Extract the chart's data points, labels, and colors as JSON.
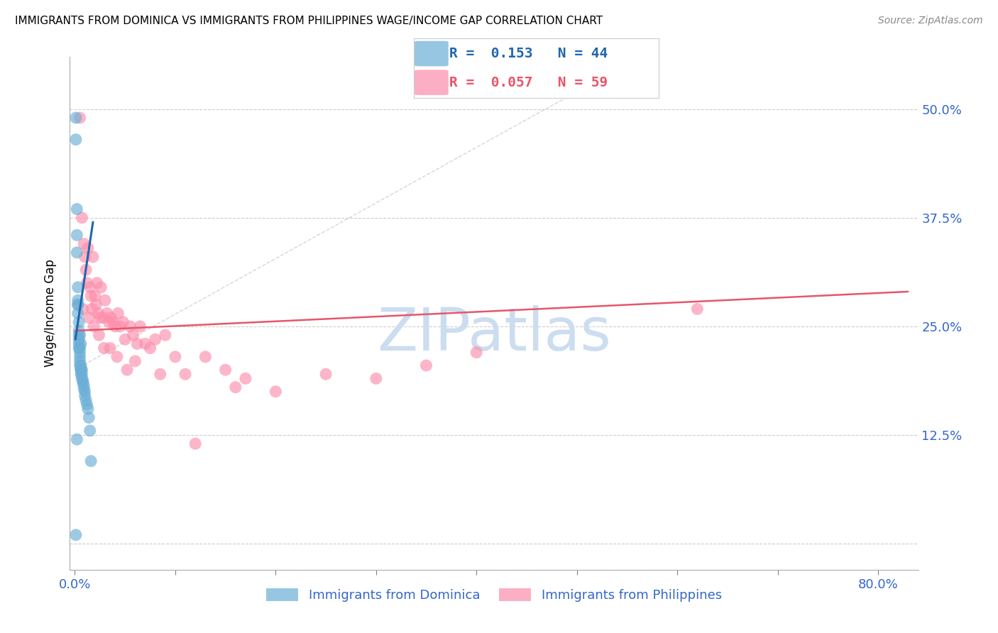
{
  "title": "IMMIGRANTS FROM DOMINICA VS IMMIGRANTS FROM PHILIPPINES WAGE/INCOME GAP CORRELATION CHART",
  "source": "Source: ZipAtlas.com",
  "xmin": -0.005,
  "xmax": 0.84,
  "ymin": -0.03,
  "ymax": 0.56,
  "R1": 0.153,
  "N1": 44,
  "R2": 0.057,
  "N2": 59,
  "color1": "#6baed6",
  "color2": "#fc8eac",
  "line_color1": "#2166ac",
  "line_color2": "#e8556a",
  "watermark": "ZIPatlas",
  "watermark_color": "#ccddf0",
  "legend_label1": "Immigrants from Dominica",
  "legend_label2": "Immigrants from Philippines",
  "dominica_x": [
    0.001,
    0.001,
    0.002,
    0.002,
    0.002,
    0.003,
    0.003,
    0.003,
    0.003,
    0.004,
    0.004,
    0.004,
    0.004,
    0.004,
    0.005,
    0.005,
    0.005,
    0.005,
    0.005,
    0.006,
    0.006,
    0.006,
    0.006,
    0.007,
    0.007,
    0.007,
    0.008,
    0.008,
    0.009,
    0.009,
    0.01,
    0.01,
    0.011,
    0.012,
    0.013,
    0.014,
    0.015,
    0.016,
    0.003,
    0.004,
    0.001,
    0.002,
    0.005,
    0.006
  ],
  "dominica_y": [
    0.49,
    0.465,
    0.385,
    0.355,
    0.335,
    0.295,
    0.275,
    0.265,
    0.275,
    0.255,
    0.245,
    0.235,
    0.23,
    0.225,
    0.225,
    0.22,
    0.215,
    0.21,
    0.205,
    0.205,
    0.2,
    0.2,
    0.195,
    0.2,
    0.195,
    0.19,
    0.188,
    0.185,
    0.182,
    0.178,
    0.175,
    0.17,
    0.165,
    0.16,
    0.155,
    0.145,
    0.13,
    0.095,
    0.28,
    0.24,
    0.01,
    0.12,
    0.24,
    0.23
  ],
  "philippines_x": [
    0.005,
    0.007,
    0.009,
    0.01,
    0.011,
    0.012,
    0.013,
    0.015,
    0.016,
    0.017,
    0.018,
    0.02,
    0.021,
    0.022,
    0.023,
    0.025,
    0.026,
    0.028,
    0.03,
    0.032,
    0.034,
    0.036,
    0.038,
    0.04,
    0.043,
    0.045,
    0.048,
    0.05,
    0.055,
    0.058,
    0.062,
    0.065,
    0.07,
    0.075,
    0.08,
    0.09,
    0.1,
    0.11,
    0.13,
    0.15,
    0.17,
    0.2,
    0.25,
    0.3,
    0.35,
    0.4,
    0.62,
    0.008,
    0.014,
    0.019,
    0.024,
    0.029,
    0.035,
    0.042,
    0.052,
    0.06,
    0.085,
    0.12,
    0.16
  ],
  "philippines_y": [
    0.49,
    0.375,
    0.345,
    0.33,
    0.315,
    0.3,
    0.34,
    0.295,
    0.285,
    0.27,
    0.33,
    0.285,
    0.275,
    0.3,
    0.265,
    0.26,
    0.295,
    0.26,
    0.28,
    0.265,
    0.255,
    0.26,
    0.255,
    0.25,
    0.265,
    0.25,
    0.255,
    0.235,
    0.25,
    0.24,
    0.23,
    0.25,
    0.23,
    0.225,
    0.235,
    0.24,
    0.215,
    0.195,
    0.215,
    0.2,
    0.19,
    0.175,
    0.195,
    0.19,
    0.205,
    0.22,
    0.27,
    0.27,
    0.26,
    0.25,
    0.24,
    0.225,
    0.225,
    0.215,
    0.2,
    0.21,
    0.195,
    0.115,
    0.18
  ],
  "dom_line_x": [
    0.0005,
    0.018
  ],
  "dom_line_y_start": 0.235,
  "dom_line_y_end": 0.37,
  "phi_line_x": [
    0.0005,
    0.83
  ],
  "phi_line_y_start": 0.245,
  "phi_line_y_end": 0.29
}
